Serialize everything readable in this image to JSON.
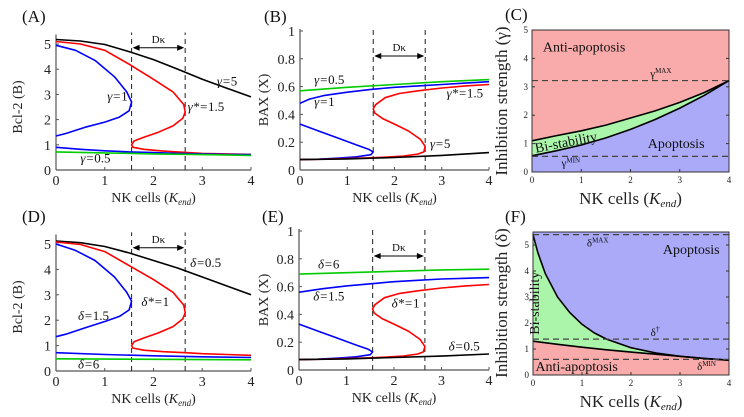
{
  "chart_data": [
    {
      "panel": "A",
      "type": "line",
      "panel_label": "(A)",
      "xlabel": "NK cells (K_end)",
      "xlabel_main": "NK cells (",
      "xlabel_var": "K",
      "xlabel_sub": "end",
      "ylabel": "Bcl-2 (B)",
      "xlim": [
        0,
        4
      ],
      "ylim": [
        0,
        5.3
      ],
      "xticks": [
        "0",
        "1",
        "2",
        "3",
        "4"
      ],
      "yticks": [
        "0",
        "1",
        "2",
        "3",
        "4",
        "5"
      ],
      "dashed_x": [
        1.55,
        2.65
      ],
      "bracket_label": "Dκ",
      "series": [
        {
          "name": "γ=5",
          "color": "#000000",
          "x": [
            0,
            0.5,
            1,
            1.5,
            2,
            2.5,
            3,
            3.5,
            4
          ],
          "y": [
            5.18,
            5.12,
            4.98,
            4.7,
            4.38,
            4.0,
            3.6,
            3.25,
            2.9
          ]
        },
        {
          "name": "γ*=1.5",
          "color": "#ff0000",
          "x": [
            0,
            0.5,
            1,
            1.5,
            2,
            2.4,
            2.62,
            2.65,
            2.6,
            2.4,
            2.1,
            1.8,
            1.6,
            1.55,
            1.58,
            1.8,
            2.2,
            2.65,
            3,
            3.5,
            4
          ],
          "y": [
            5.1,
            5.0,
            4.75,
            4.2,
            3.6,
            3.1,
            2.6,
            2.3,
            2.05,
            1.75,
            1.5,
            1.3,
            1.15,
            1.0,
            0.9,
            0.82,
            0.75,
            0.7,
            0.66,
            0.64,
            0.62
          ]
        },
        {
          "name": "γ=1",
          "color": "#0000ff",
          "x": [
            0,
            0.4,
            0.8,
            1.2,
            1.45,
            1.55,
            1.5,
            1.3,
            1.0,
            0.6,
            0.2,
            0
          ],
          "y": [
            4.95,
            4.75,
            4.35,
            3.7,
            3.1,
            2.7,
            2.35,
            2.1,
            1.9,
            1.7,
            1.45,
            1.35
          ]
        },
        {
          "name": "γ=1 (lower)",
          "color": "#0000ff",
          "x": [
            0,
            0.5,
            1,
            1.5,
            2,
            2.5,
            3,
            3.5,
            4
          ],
          "y": [
            0.9,
            0.82,
            0.76,
            0.72,
            0.69,
            0.66,
            0.64,
            0.62,
            0.61
          ]
        },
        {
          "name": "γ=0.5",
          "color": "#00cc00",
          "x": [
            0,
            1,
            2,
            3,
            4
          ],
          "y": [
            0.72,
            0.68,
            0.64,
            0.61,
            0.58
          ]
        }
      ],
      "annotations": [
        {
          "text_pre": "γ=",
          "text_val": "5",
          "x": 3.3,
          "y": 3.35
        },
        {
          "text_pre": "γ*=",
          "text_val": "1.5",
          "x": 2.7,
          "y": 2.35
        },
        {
          "text_pre": "γ=",
          "text_val": "1",
          "x": 1.05,
          "y": 2.75
        },
        {
          "text_pre": "γ=",
          "text_val": "0.5",
          "x": 0.5,
          "y": 0.3
        }
      ]
    },
    {
      "panel": "B",
      "type": "line",
      "panel_label": "(B)",
      "xlabel": "NK cells (K_end)",
      "xlabel_main": "NK cells (",
      "xlabel_var": "K",
      "xlabel_sub": "end",
      "ylabel": "BAX (X)",
      "xlim": [
        0,
        4
      ],
      "ylim": [
        0,
        1
      ],
      "xticks": [
        "0",
        "1",
        "2",
        "3",
        "4"
      ],
      "yticks": [
        "0",
        "0.2",
        "0.4",
        "0.6",
        "0.8",
        "1"
      ],
      "dashed_x": [
        1.55,
        2.65
      ],
      "bracket_label": "Dκ",
      "series": [
        {
          "name": "γ=0.5",
          "color": "#00cc00",
          "x": [
            0,
            1,
            2,
            3,
            4
          ],
          "y": [
            0.57,
            0.595,
            0.615,
            0.635,
            0.65
          ]
        },
        {
          "name": "γ=1",
          "color": "#0000ff",
          "x": [
            0,
            0.2,
            0.5,
            1,
            1.5,
            2,
            2.5,
            3,
            3.5,
            4
          ],
          "y": [
            0.48,
            0.51,
            0.535,
            0.56,
            0.58,
            0.595,
            0.605,
            0.615,
            0.625,
            0.635
          ]
        },
        {
          "name": "γ=1 (lower)",
          "color": "#0000ff",
          "x": [
            0,
            0.4,
            0.8,
            1.2,
            1.45,
            1.55,
            1.5,
            1.2,
            0.8,
            0.4,
            0
          ],
          "y": [
            0.33,
            0.28,
            0.23,
            0.18,
            0.15,
            0.13,
            0.11,
            0.095,
            0.085,
            0.078,
            0.075
          ]
        },
        {
          "name": "γ*=1.5",
          "color": "#ff0000",
          "x": [
            0,
            0.5,
            1,
            1.5,
            1.8,
            2.2,
            2.5,
            2.62,
            2.65,
            2.55,
            2.3,
            2.0,
            1.75,
            1.58,
            1.55,
            1.6,
            1.8,
            2.1,
            2.5,
            3,
            3.5,
            4
          ],
          "y": [
            0.075,
            0.078,
            0.082,
            0.088,
            0.092,
            0.1,
            0.115,
            0.13,
            0.17,
            0.22,
            0.28,
            0.33,
            0.37,
            0.41,
            0.44,
            0.47,
            0.52,
            0.55,
            0.57,
            0.59,
            0.605,
            0.615
          ]
        },
        {
          "name": "γ=5",
          "color": "#000000",
          "x": [
            0,
            1,
            2,
            3,
            4
          ],
          "y": [
            0.075,
            0.08,
            0.09,
            0.105,
            0.125
          ]
        }
      ],
      "annotations": [
        {
          "text_pre": "γ=",
          "text_val": "0.5",
          "x": 0.3,
          "y": 0.62
        },
        {
          "text_pre": "γ=",
          "text_val": "1",
          "x": 0.3,
          "y": 0.46
        },
        {
          "text_pre": "γ*=",
          "text_val": "1.5",
          "x": 3.1,
          "y": 0.52
        },
        {
          "text_pre": "γ=",
          "text_val": "5",
          "x": 2.75,
          "y": 0.16
        }
      ]
    },
    {
      "panel": "C",
      "type": "area",
      "panel_label": "(C)",
      "xlabel": "NK cells (K_end)",
      "xlabel_main": "NK cells (",
      "xlabel_var": "K",
      "xlabel_sub": "end",
      "ylabel": "Inhibition strength (γ)",
      "xlim": [
        0,
        4
      ],
      "ylim": [
        0,
        5
      ],
      "xticks": [
        "0",
        "1",
        "2",
        "3",
        "4"
      ],
      "yticks": [
        "0",
        "1",
        "2",
        "3",
        "4",
        "5"
      ],
      "upper_boundary": {
        "x": [
          0,
          0.5,
          1,
          1.5,
          2,
          2.5,
          3,
          3.5,
          4
        ],
        "y": [
          1.1,
          1.28,
          1.45,
          1.65,
          1.9,
          2.15,
          2.45,
          2.8,
          3.22
        ]
      },
      "lower_boundary": {
        "x": [
          0,
          0.5,
          1,
          1.5,
          2,
          2.5,
          3,
          3.5,
          4
        ],
        "y": [
          0.57,
          0.75,
          0.95,
          1.2,
          1.5,
          1.85,
          2.25,
          2.7,
          3.22
        ]
      },
      "hlines": [
        {
          "name": "γMAX",
          "y": 3.22
        },
        {
          "name": "γMIN",
          "y": 0.55
        }
      ],
      "regions": [
        {
          "name": "Anti-apoptosis",
          "color": "#f9aaaa"
        },
        {
          "name": "Bi-stability",
          "color": "#aaf5aa"
        },
        {
          "name": "Apoptosis",
          "color": "#aaaaf8"
        }
      ],
      "labels": {
        "anti": "Anti-apoptosis",
        "bi": "Bi-stability",
        "apo": "Apoptosis",
        "max_base": "γ",
        "max_sup": "MAX",
        "min_base": "γ",
        "min_sup": "MIN"
      }
    },
    {
      "panel": "D",
      "type": "line",
      "panel_label": "(D)",
      "xlabel": "NK cells (K_end)",
      "xlabel_main": "NK cells (",
      "xlabel_var": "K",
      "xlabel_sub": "end",
      "ylabel": "Bcl-2 (B)",
      "xlim": [
        0,
        4
      ],
      "ylim": [
        0,
        5.3
      ],
      "xticks": [
        "0",
        "1",
        "2",
        "3",
        "4"
      ],
      "yticks": [
        "0",
        "1",
        "2",
        "3",
        "4",
        "5"
      ],
      "dashed_x": [
        1.55,
        2.65
      ],
      "bracket_label": "Dκ",
      "series": [
        {
          "name": "δ=0.5",
          "color": "#000000",
          "x": [
            0,
            0.5,
            1,
            1.5,
            2,
            2.5,
            3,
            3.5,
            4
          ],
          "y": [
            5.12,
            5.05,
            4.9,
            4.65,
            4.35,
            4.05,
            3.7,
            3.35,
            3.0
          ]
        },
        {
          "name": "δ*=1",
          "color": "#ff0000",
          "x": [
            0,
            0.5,
            1,
            1.5,
            2,
            2.4,
            2.62,
            2.65,
            2.6,
            2.4,
            2.1,
            1.8,
            1.6,
            1.55,
            1.58,
            1.8,
            2.2,
            2.65,
            3,
            3.5,
            4
          ],
          "y": [
            5.08,
            4.98,
            4.7,
            4.15,
            3.6,
            3.1,
            2.6,
            2.3,
            2.05,
            1.75,
            1.5,
            1.3,
            1.15,
            1.0,
            0.9,
            0.82,
            0.76,
            0.72,
            0.68,
            0.65,
            0.62
          ]
        },
        {
          "name": "δ=1.5",
          "color": "#0000ff",
          "x": [
            0,
            0.4,
            0.8,
            1.2,
            1.45,
            1.55,
            1.5,
            1.3,
            1.0,
            0.6,
            0.2,
            0
          ],
          "y": [
            5.0,
            4.75,
            4.35,
            3.7,
            3.1,
            2.75,
            2.4,
            2.15,
            1.95,
            1.7,
            1.45,
            1.35
          ]
        },
        {
          "name": "δ=1.5 (lower)",
          "color": "#0000ff",
          "x": [
            0,
            1,
            2,
            3,
            4
          ],
          "y": [
            0.72,
            0.65,
            0.6,
            0.56,
            0.53
          ]
        },
        {
          "name": "δ=6",
          "color": "#00cc00",
          "x": [
            0,
            1,
            2,
            3,
            4
          ],
          "y": [
            0.48,
            0.47,
            0.46,
            0.45,
            0.44
          ]
        }
      ],
      "annotations": [
        {
          "text_pre": "δ=",
          "text_val": "0.5",
          "x": 2.75,
          "y": 4.1
        },
        {
          "text_pre": "δ*=",
          "text_val": "1",
          "x": 1.75,
          "y": 2.55
        },
        {
          "text_pre": "δ=",
          "text_val": "1.5",
          "x": 0.45,
          "y": 2.0
        },
        {
          "text_pre": "δ=",
          "text_val": "6",
          "x": 0.45,
          "y": 0.1
        }
      ]
    },
    {
      "panel": "E",
      "type": "line",
      "panel_label": "(E)",
      "xlabel": "NK cells (K_end)",
      "xlabel_main": "NK cells (",
      "xlabel_var": "K",
      "xlabel_sub": "end",
      "ylabel": "BAX (X)",
      "xlim": [
        0,
        4
      ],
      "ylim": [
        0,
        1
      ],
      "xticks": [
        "0",
        "1",
        "2",
        "3",
        "4"
      ],
      "yticks": [
        "0",
        "0.2",
        "0.4",
        "0.6",
        "0.8",
        "1"
      ],
      "dashed_x": [
        1.55,
        2.65
      ],
      "bracket_label": "Dκ",
      "series": [
        {
          "name": "δ=6",
          "color": "#00cc00",
          "x": [
            0,
            1,
            2,
            3,
            4
          ],
          "y": [
            0.69,
            0.7,
            0.71,
            0.72,
            0.725
          ]
        },
        {
          "name": "δ=1.5",
          "color": "#0000ff",
          "x": [
            0,
            0.2,
            0.5,
            1,
            1.5,
            2,
            2.5,
            3,
            3.5,
            4
          ],
          "y": [
            0.56,
            0.57,
            0.585,
            0.605,
            0.62,
            0.635,
            0.645,
            0.655,
            0.66,
            0.665
          ]
        },
        {
          "name": "δ=1.5 (lower)",
          "color": "#0000ff",
          "x": [
            0,
            0.4,
            0.8,
            1.2,
            1.45,
            1.55,
            1.5,
            1.2,
            0.8,
            0.4,
            0
          ],
          "y": [
            0.33,
            0.28,
            0.23,
            0.18,
            0.15,
            0.13,
            0.11,
            0.095,
            0.085,
            0.078,
            0.075
          ]
        },
        {
          "name": "δ*=1",
          "color": "#ff0000",
          "x": [
            0,
            0.5,
            1,
            1.5,
            1.8,
            2.2,
            2.5,
            2.62,
            2.65,
            2.55,
            2.3,
            2.0,
            1.75,
            1.58,
            1.55,
            1.6,
            1.8,
            2.1,
            2.5,
            3,
            3.5,
            4
          ],
          "y": [
            0.075,
            0.078,
            0.082,
            0.088,
            0.092,
            0.1,
            0.115,
            0.13,
            0.17,
            0.22,
            0.28,
            0.33,
            0.37,
            0.41,
            0.44,
            0.47,
            0.52,
            0.55,
            0.57,
            0.59,
            0.605,
            0.615
          ]
        },
        {
          "name": "δ=0.5",
          "color": "#000000",
          "x": [
            0,
            1,
            2,
            3,
            4
          ],
          "y": [
            0.075,
            0.08,
            0.09,
            0.1,
            0.115
          ]
        }
      ],
      "annotations": [
        {
          "text_pre": "δ=",
          "text_val": "6",
          "x": 0.4,
          "y": 0.73
        },
        {
          "text_pre": "δ=",
          "text_val": "1.5",
          "x": 0.3,
          "y": 0.5
        },
        {
          "text_pre": "δ*=",
          "text_val": "1",
          "x": 1.95,
          "y": 0.45
        },
        {
          "text_pre": "δ=",
          "text_val": "0.5",
          "x": 3.15,
          "y": 0.14
        }
      ]
    },
    {
      "panel": "F",
      "type": "area",
      "panel_label": "(F)",
      "xlabel": "NK cells (K_end)",
      "xlabel_main": "NK cells (",
      "xlabel_var": "K",
      "xlabel_sub": "end",
      "ylabel": "Inhibition strength (δ)",
      "xlim": [
        0,
        4
      ],
      "ylim": [
        0,
        5.5
      ],
      "xticks": [
        "0",
        "1",
        "2",
        "3",
        "4"
      ],
      "yticks": [
        "0",
        "1",
        "2",
        "3",
        "4",
        "5"
      ],
      "upper_boundary": {
        "x": [
          0,
          0.1,
          0.25,
          0.5,
          0.75,
          1,
          1.25,
          1.5,
          2,
          2.5,
          3,
          3.5,
          4
        ],
        "y": [
          5.4,
          4.7,
          3.9,
          3.0,
          2.4,
          1.95,
          1.62,
          1.38,
          1.05,
          0.85,
          0.72,
          0.63,
          0.57
        ]
      },
      "lower_boundary": {
        "x": [
          0,
          0.5,
          1,
          1.5,
          2,
          2.5,
          3,
          3.5,
          4
        ],
        "y": [
          1.3,
          1.18,
          1.07,
          0.97,
          0.88,
          0.8,
          0.72,
          0.64,
          0.57
        ]
      },
      "hlines": [
        {
          "name": "δMAX",
          "y": 5.4
        },
        {
          "name": "δ†",
          "y": 1.38
        },
        {
          "name": "δMIN",
          "y": 0.6
        }
      ],
      "regions": [
        {
          "name": "Apoptosis",
          "color": "#aaaaf8"
        },
        {
          "name": "Bi-stability",
          "color": "#aaf5aa"
        },
        {
          "name": "Anti-apoptosis",
          "color": "#f9aaaa"
        }
      ],
      "labels": {
        "anti": "Anti-apoptosis",
        "bi": "Bi-stability",
        "apo": "Apoptosis",
        "max_base": "δ",
        "max_sup": "MAX",
        "dag_base": "δ",
        "dag_sup": "†",
        "min_base": "δ",
        "min_sup": "MIN"
      }
    }
  ]
}
